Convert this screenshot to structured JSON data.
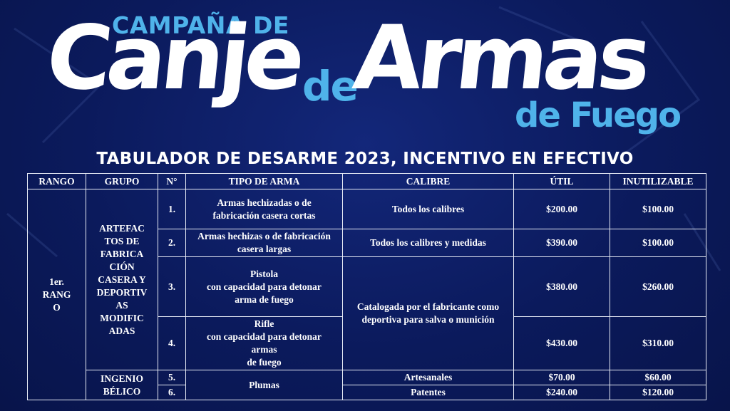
{
  "header": {
    "campana": "CAMPAÑA DE",
    "canje": "Canje",
    "de_mid": "de",
    "armas": "Armas",
    "de_fuego": "de Fuego",
    "subtitle": "TABULADOR DE DESARME 2023, INCENTIVO EN EFECTIVO"
  },
  "table": {
    "headers": [
      "RANGO",
      "GRUPO",
      "N°",
      "TIPO DE ARMA",
      "CALIBRE",
      "ÚTIL",
      "INUTILIZABLE"
    ],
    "rango": "1er. RANGO",
    "group1": "ARTEFACTOS DE FABRICACIÓN CASERA Y DEPORTIVAS MODIFICADAS",
    "group2": "INGENIO BÉLICO",
    "rows": [
      {
        "n": "1.",
        "tipo": "Armas hechizadas o de fabricación casera cortas",
        "calibre": "Todos los calibres",
        "util": "$200.00",
        "inutil": "$100.00"
      },
      {
        "n": "2.",
        "tipo": "Armas hechizas o de fabricación casera largas",
        "calibre": "Todos los calibres y medidas",
        "util": "$390.00",
        "inutil": "$100.00"
      },
      {
        "n": "3.",
        "tipo": "Pistola con capacidad para detonar arma de fuego",
        "calibre": "Catalogada por el fabricante como deportiva para salva o munición",
        "util": "$380.00",
        "inutil": "$260.00"
      },
      {
        "n": "4.",
        "tipo": "Rifle con capacidad para detonar armas de fuego",
        "calibre": "",
        "util": "$430.00",
        "inutil": "$310.00"
      },
      {
        "n": "5.",
        "tipo": "Plumas",
        "calibre": "Artesanales",
        "util": "$70.00",
        "inutil": "$60.00"
      },
      {
        "n": "6.",
        "tipo": "",
        "calibre": "Patentes",
        "util": "$240.00",
        "inutil": "$120.00"
      }
    ],
    "tipo3_lines": [
      "Pistola",
      "con capacidad para detonar",
      "arma de fuego"
    ],
    "tipo4_lines": [
      "Rifle",
      "con capacidad para detonar",
      "armas",
      "de fuego"
    ],
    "rango_lines": [
      "1er.",
      "RANG",
      "O"
    ],
    "group1_lines": [
      "ARTEFAC",
      "TOS DE",
      "FABRICA",
      "CIÓN",
      "CASERA Y",
      "DEPORTIV",
      "AS",
      "MODIFIC",
      "ADAS"
    ],
    "group2_lines": [
      "INGENIO",
      "BÉLICO"
    ],
    "tipo1_lines": [
      "Armas hechizadas o de",
      "fabricación casera cortas"
    ],
    "tipo2_lines": [
      "Armas hechizas o de fabricación",
      "casera largas"
    ],
    "calibre3_lines": [
      "Catalogada por el fabricante como",
      "deportiva para salva o munición"
    ]
  },
  "colors": {
    "background": "#0b1a5c",
    "accent": "#4fb3ea",
    "text": "#ffffff"
  }
}
